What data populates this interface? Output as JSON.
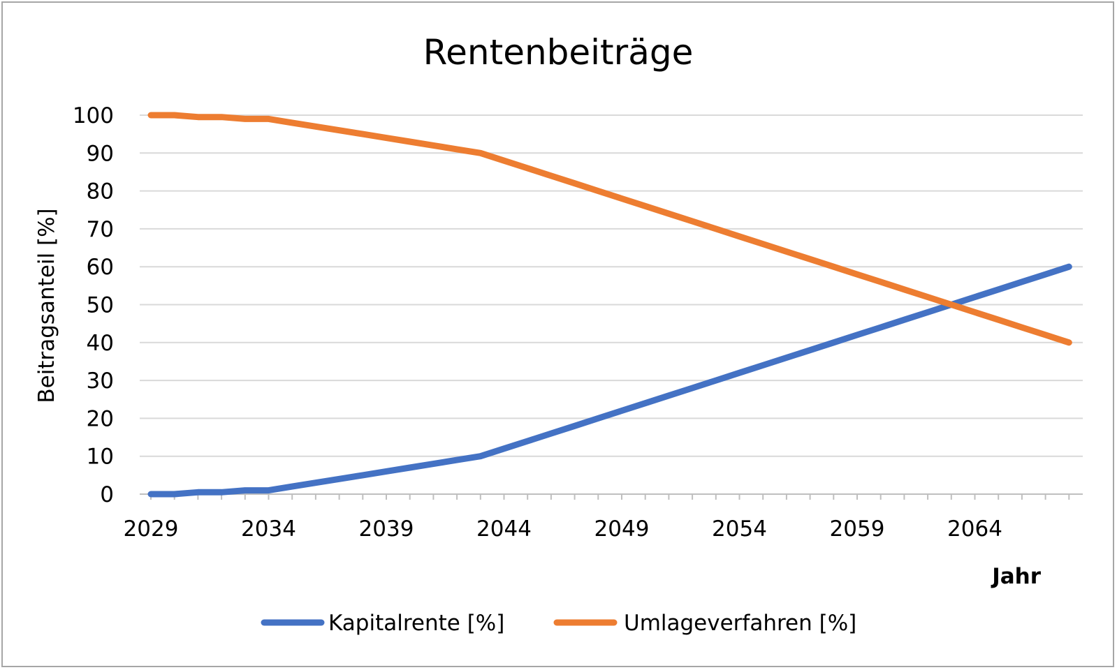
{
  "chart_data": {
    "type": "line",
    "title": "Rentenbeiträge",
    "xlabel": "Jahr",
    "ylabel": "Beitragsanteil [%]",
    "ylim": [
      0,
      100
    ],
    "yticks": [
      0,
      10,
      20,
      30,
      40,
      50,
      60,
      70,
      80,
      90,
      100
    ],
    "xlim": [
      2029,
      2068
    ],
    "xticks": [
      2029,
      2034,
      2039,
      2044,
      2049,
      2054,
      2059,
      2064
    ],
    "grid": true,
    "legend_position": "bottom",
    "x": [
      2029,
      2030,
      2031,
      2032,
      2033,
      2034,
      2035,
      2036,
      2037,
      2038,
      2039,
      2040,
      2041,
      2042,
      2043,
      2044,
      2045,
      2046,
      2047,
      2048,
      2049,
      2050,
      2051,
      2052,
      2053,
      2054,
      2055,
      2056,
      2057,
      2058,
      2059,
      2060,
      2061,
      2062,
      2063,
      2064,
      2065,
      2066,
      2067,
      2068
    ],
    "series": [
      {
        "name": "Kapitalrente [%]",
        "color": "#4472C4",
        "values": [
          0,
          0,
          0.5,
          0.5,
          1,
          1,
          2,
          3,
          4,
          5,
          6,
          7,
          8,
          9,
          10,
          12,
          14,
          16,
          18,
          20,
          22,
          24,
          26,
          28,
          30,
          32,
          34,
          36,
          38,
          40,
          42,
          44,
          46,
          48,
          50,
          52,
          54,
          56,
          58,
          60
        ]
      },
      {
        "name": "Umlageverfahren [%]",
        "color": "#ED7D31",
        "values": [
          100,
          100,
          99.5,
          99.5,
          99,
          99,
          98,
          97,
          96,
          95,
          94,
          93,
          92,
          91,
          90,
          88,
          86,
          84,
          82,
          80,
          78,
          76,
          74,
          72,
          70,
          68,
          66,
          64,
          62,
          60,
          58,
          56,
          54,
          52,
          50,
          48,
          46,
          44,
          42,
          40
        ]
      }
    ]
  }
}
